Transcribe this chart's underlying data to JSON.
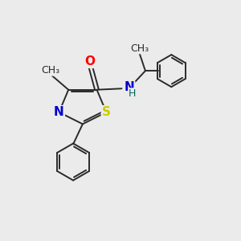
{
  "bg_color": "#ebebeb",
  "bond_color": "#2a2a2a",
  "atom_colors": {
    "O": "#ff0000",
    "N": "#0000cc",
    "S": "#cccc00",
    "H": "#006666",
    "C": "#2a2a2a"
  },
  "font_size_atom": 11,
  "font_size_label": 9,
  "line_width": 1.4,
  "figsize": [
    3.0,
    3.0
  ],
  "dpi": 100
}
